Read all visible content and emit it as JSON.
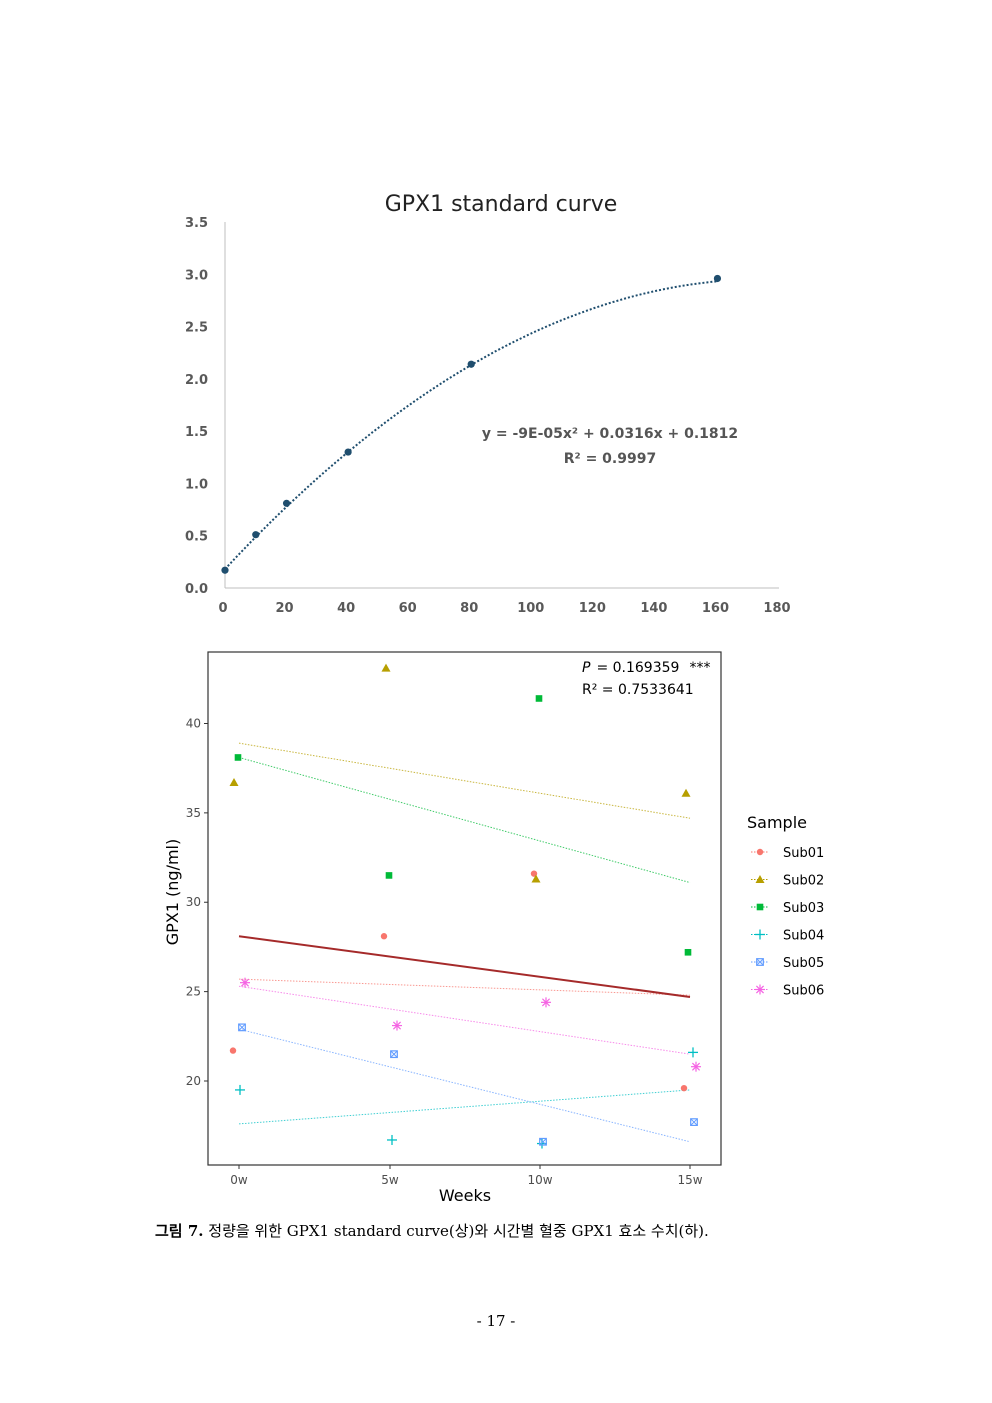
{
  "chart_data": [
    {
      "type": "scatter",
      "title": "GPX1 standard curve",
      "xlim": [
        0,
        180
      ],
      "ylim": [
        0,
        3.5
      ],
      "xticks": [
        "0",
        "20",
        "40",
        "60",
        "80",
        "100",
        "120",
        "140",
        "160",
        "180"
      ],
      "yticks": [
        "0.0",
        "0.5",
        "1.0",
        "1.5",
        "2.0",
        "2.5",
        "3.0",
        "3.5"
      ],
      "x": [
        0,
        10,
        20,
        40,
        80,
        160
      ],
      "y": [
        0.17,
        0.51,
        0.81,
        1.3,
        2.14,
        2.96
      ],
      "trendline": {
        "type": "polynomial",
        "coefficients": [
          -9e-05,
          0.0316,
          0.1812
        ]
      },
      "equation_label": "y = -9E-05x² + 0.0316x + 0.1812",
      "r2_label": "R² = 0.9997",
      "marker_color": "#1f4e6e",
      "grid": false
    },
    {
      "type": "scatter",
      "xlabel": "Weeks",
      "ylabel": "GPX1 (ng/ml)",
      "categories": [
        "0w",
        "5w",
        "10w",
        "15w"
      ],
      "ylim": [
        15.3,
        44.0
      ],
      "yticks": [
        20,
        25,
        30,
        35,
        40
      ],
      "legend_title": "Sample",
      "legend_position": "right",
      "p_label": "P",
      "p_value": "= 0.169359",
      "p_stars": "***",
      "r2_label": "R² = 0.7533641",
      "overall_trend": {
        "start": 28.1,
        "end": 24.7,
        "color": "#a52a2a"
      },
      "series": [
        {
          "name": "Sub01",
          "color": "#f8766d",
          "marker": "circle",
          "values": [
            21.7,
            28.1,
            31.6,
            19.6
          ],
          "trend": [
            25.7,
            24.8
          ]
        },
        {
          "name": "Sub02",
          "color": "#b79f00",
          "marker": "triangle",
          "values": [
            36.7,
            43.1,
            31.3,
            36.1
          ],
          "trend": [
            38.9,
            34.7
          ]
        },
        {
          "name": "Sub03",
          "color": "#00ba38",
          "marker": "square",
          "values": [
            38.1,
            31.5,
            41.4,
            27.2
          ],
          "trend": [
            38.1,
            31.1
          ]
        },
        {
          "name": "Sub04",
          "color": "#00bfc4",
          "marker": "plus",
          "values": [
            19.5,
            16.7,
            16.5,
            21.6
          ],
          "trend": [
            17.6,
            19.5
          ]
        },
        {
          "name": "Sub05",
          "color": "#619cff",
          "marker": "boxx",
          "values": [
            23.0,
            21.5,
            16.6,
            17.7
          ],
          "trend": [
            22.9,
            16.6
          ]
        },
        {
          "name": "Sub06",
          "color": "#f564e3",
          "marker": "asterisk",
          "values": [
            25.5,
            23.1,
            24.4,
            20.8
          ],
          "trend": [
            25.3,
            21.5
          ]
        }
      ]
    }
  ],
  "caption": {
    "label": "그림 7.",
    "text": "정량을 위한 GPX1 standard curve(상)와 시간별 혈중 GPX1 효소 수치(하)."
  },
  "page_number": "- 17 -"
}
